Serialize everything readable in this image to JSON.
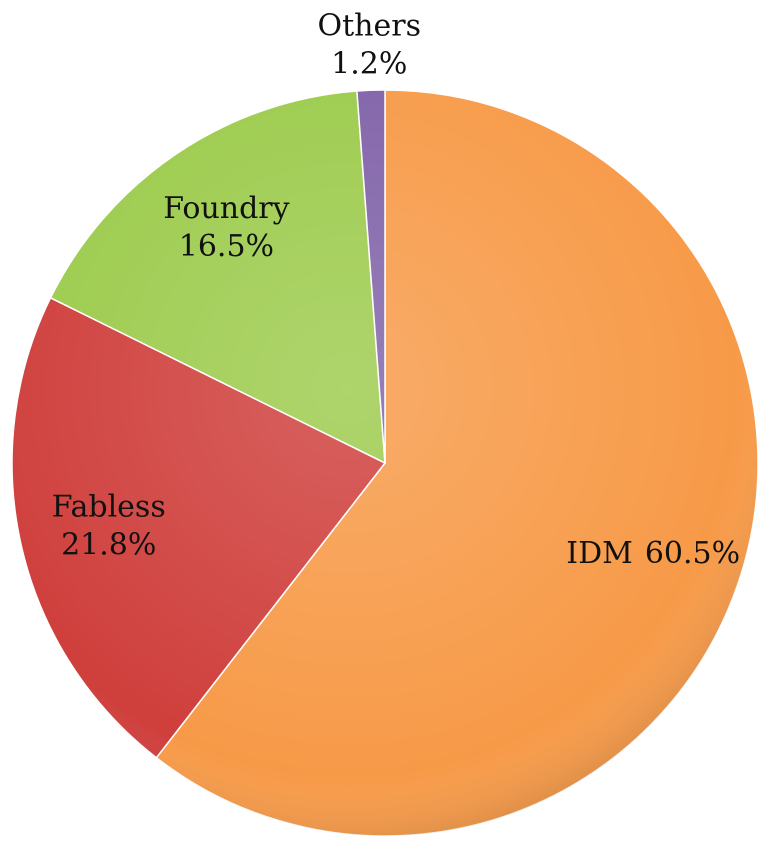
{
  "chart_data": {
    "type": "pie",
    "categories": [
      "IDM",
      "Fabless",
      "Foundry",
      "Others"
    ],
    "values": [
      60.5,
      21.8,
      16.5,
      1.2
    ],
    "value_labels": [
      "60.5%",
      "21.8%",
      "16.5%",
      "1.2%"
    ],
    "colors": [
      "#f79a48",
      "#cf3f3c",
      "#9ccb4c",
      "#8062a8"
    ]
  }
}
